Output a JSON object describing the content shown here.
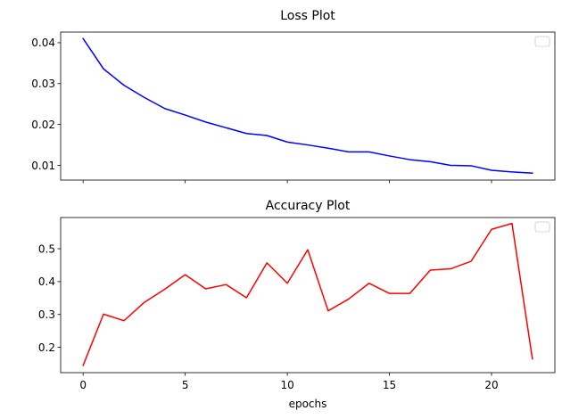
{
  "chart_data": [
    {
      "type": "line",
      "title": "Loss Plot",
      "xlabel": "",
      "ylabel": "",
      "xlim": [
        -1.1,
        23.1
      ],
      "ylim": [
        0.0064,
        0.0426
      ],
      "x_ticks": [
        0,
        5,
        10,
        15,
        20
      ],
      "x_tick_labels_visible": false,
      "y_ticks": [
        0.01,
        0.02,
        0.03,
        0.04
      ],
      "y_tick_labels": [
        "0.01",
        "0.02",
        "0.03",
        "0.04"
      ],
      "legend": "top-right (empty)",
      "grid": false,
      "series": [
        {
          "color": "#0000ff",
          "x": [
            0,
            1,
            2,
            3,
            4,
            5,
            6,
            7,
            8,
            9,
            10,
            11,
            12,
            13,
            14,
            15,
            16,
            17,
            18,
            19,
            20,
            21,
            22
          ],
          "values": [
            0.041,
            0.0336,
            0.0296,
            0.0266,
            0.0239,
            0.0223,
            0.0206,
            0.0192,
            0.0178,
            0.0173,
            0.0157,
            0.015,
            0.0142,
            0.0133,
            0.0133,
            0.0123,
            0.0114,
            0.0109,
            0.01,
            0.0099,
            0.0088,
            0.0084,
            0.0081
          ]
        }
      ]
    },
    {
      "type": "line",
      "title": "Accuracy Plot",
      "xlabel": "epochs",
      "ylabel": "",
      "xlim": [
        -1.1,
        23.1
      ],
      "ylim": [
        0.123,
        0.595
      ],
      "x_ticks": [
        0,
        5,
        10,
        15,
        20
      ],
      "x_tick_labels": [
        "0",
        "5",
        "10",
        "15",
        "20"
      ],
      "y_ticks": [
        0.2,
        0.3,
        0.4,
        0.5
      ],
      "y_tick_labels": [
        "0.2",
        "0.3",
        "0.4",
        "0.5"
      ],
      "legend": "top-right (empty)",
      "grid": false,
      "series": [
        {
          "color": "#ff0000",
          "x": [
            0,
            1,
            2,
            3,
            4,
            5,
            6,
            7,
            8,
            9,
            10,
            11,
            12,
            13,
            14,
            15,
            16,
            17,
            18,
            19,
            20,
            21,
            22
          ],
          "values": [
            0.145,
            0.301,
            0.281,
            0.337,
            0.377,
            0.421,
            0.378,
            0.391,
            0.351,
            0.457,
            0.395,
            0.497,
            0.311,
            0.347,
            0.395,
            0.364,
            0.364,
            0.435,
            0.439,
            0.462,
            0.559,
            0.577,
            0.165
          ]
        }
      ]
    }
  ]
}
